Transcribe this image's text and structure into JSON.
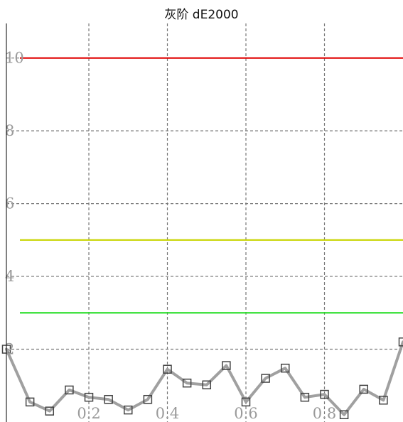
{
  "chart_data": {
    "type": "line",
    "title": "灰阶 dE2000",
    "xlabel": "",
    "ylabel": "",
    "xlim": [
      -0.01,
      1.0
    ],
    "ylim": [
      0,
      10.95
    ],
    "grid": true,
    "x_ticks": [
      0.2,
      0.4,
      0.6,
      0.8
    ],
    "x_tick_labels": [
      "0.2",
      "0.4",
      "0.6",
      "0.8"
    ],
    "y_ticks": [
      2,
      4,
      6,
      8,
      10
    ],
    "y_tick_labels": [
      "2",
      "4",
      "6",
      "8",
      "10"
    ],
    "thresholds": [
      {
        "value": 10,
        "color": "#e00000"
      },
      {
        "value": 5,
        "color": "#c8d400"
      },
      {
        "value": 3,
        "color": "#22dd22"
      }
    ],
    "series": [
      {
        "color": "#a0a0a0",
        "x": [
          -0.01,
          0.05,
          0.1,
          0.15,
          0.2,
          0.25,
          0.3,
          0.35,
          0.4,
          0.45,
          0.5,
          0.55,
          0.6,
          0.65,
          0.7,
          0.75,
          0.8,
          0.85,
          0.9,
          0.95,
          1.0
        ],
        "y": [
          2.0,
          0.55,
          0.3,
          0.88,
          0.68,
          0.62,
          0.33,
          0.62,
          1.45,
          1.07,
          1.02,
          1.55,
          0.55,
          1.2,
          1.48,
          0.68,
          0.76,
          0.2,
          0.9,
          0.6,
          2.2
        ]
      }
    ]
  }
}
